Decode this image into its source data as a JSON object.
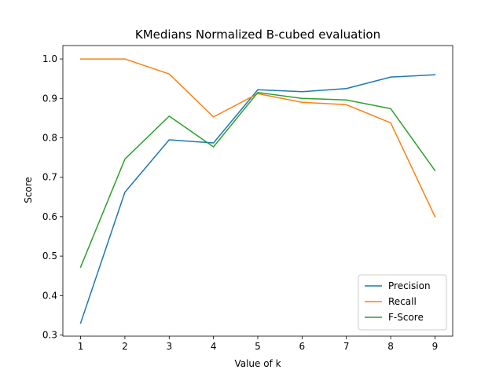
{
  "chart_data": {
    "type": "line",
    "title": "KMedians Normalized B-cubed evaluation",
    "xlabel": "Value of k",
    "ylabel": "Score",
    "x": [
      1,
      2,
      3,
      4,
      5,
      6,
      7,
      8,
      9
    ],
    "xlim": [
      0.6,
      9.4
    ],
    "ylim": [
      0.297,
      1.034
    ],
    "xticks": [
      "1",
      "2",
      "3",
      "4",
      "5",
      "6",
      "7",
      "8",
      "9"
    ],
    "yticks": [
      "0.3",
      "0.4",
      "0.5",
      "0.6",
      "0.7",
      "0.8",
      "0.9",
      "1.0"
    ],
    "grid": false,
    "legend_position": "lower-right",
    "series": [
      {
        "name": "Precision",
        "color": "#1f77b4",
        "values": [
          0.33,
          0.662,
          0.795,
          0.787,
          0.922,
          0.917,
          0.925,
          0.954,
          0.96
        ]
      },
      {
        "name": "Recall",
        "color": "#ff7f0e",
        "values": [
          1.0,
          1.0,
          0.962,
          0.853,
          0.912,
          0.89,
          0.884,
          0.838,
          0.6
        ]
      },
      {
        "name": "F-Score",
        "color": "#2ca02c",
        "values": [
          0.472,
          0.746,
          0.855,
          0.777,
          0.915,
          0.9,
          0.896,
          0.874,
          0.717
        ]
      }
    ]
  }
}
